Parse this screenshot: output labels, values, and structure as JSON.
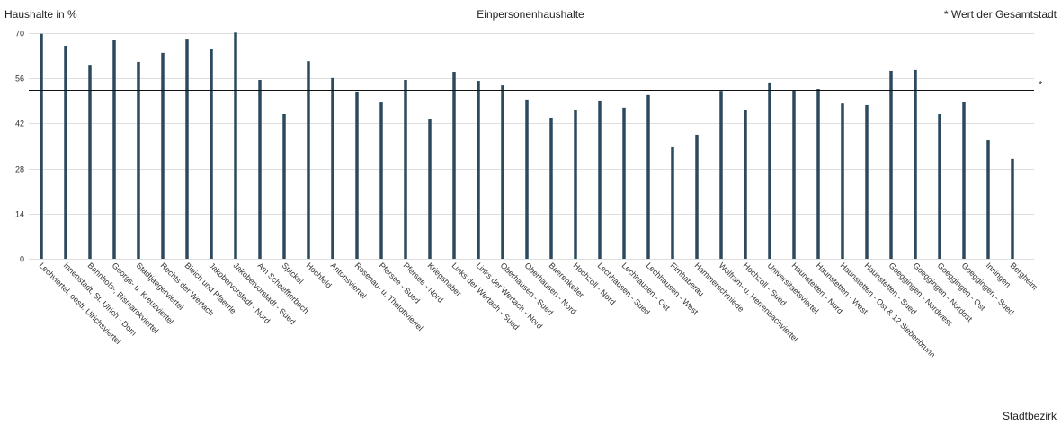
{
  "header": {
    "y_axis_title": "Haushalte in %",
    "title": "Einpersonenhaushalte",
    "legend_note": "* Wert der Gesamtstadt",
    "x_axis_title": "Stadtbezirk"
  },
  "colors": {
    "bar": "#2c4a5e",
    "grid": "#dedede",
    "reference": "#111111",
    "text": "#333333"
  },
  "chart_data": {
    "type": "bar",
    "title": "Einpersonenhaushalte",
    "xlabel": "Stadtbezirk",
    "ylabel": "Haushalte in %",
    "ylim": [
      0,
      70
    ],
    "yticks": [
      0,
      14,
      28,
      42,
      56,
      70
    ],
    "grid": true,
    "categories": [
      "Lechviertel, oestl. Ulrichsviertel",
      "Innenstadt, St. Ulrich - Dom",
      "Bahnhofs-, Bismarckviertel",
      "Georgs- u. Kreuzviertel",
      "Stadtjaegerviertel",
      "Rechts der Wertach",
      "Bleich und Pfaerrle",
      "Jakobervorstadt - Nord",
      "Jakobervorstadt - Sued",
      "Am Schaefflerbach",
      "Spickel",
      "Hochfeld",
      "Antonsviertel",
      "Rosenau- u. Thelottviertel",
      "Pfersee - Sued",
      "Pfersee - Nord",
      "Kriegshaber",
      "Links der Wertach - Sued",
      "Links der Wertach - Nord",
      "Oberhausen - Sued",
      "Oberhausen - Nord",
      "Baerenkeller",
      "Hochzoll - Nord",
      "Lechhausen - Sued",
      "Lechhausen - Ost",
      "Lechhausen - West",
      "Firnhaberau",
      "Hammerschmiede",
      "Wolfram- u. Herrenbachviertel",
      "Hochzoll - Sued",
      "Universitaetsviertel",
      "Haunstetten - Nord",
      "Haunstetten - West",
      "Haunstetten - Ost & 12 Siebenbrunn",
      "Haunstetten - Sued",
      "Goeggingen - Nordwest",
      "Goeggingen - Nordost",
      "Goeggingen - Ost",
      "Goeggingen - Sued",
      "Inningen",
      "Bergheim"
    ],
    "values": [
      69.8,
      66.1,
      60.2,
      67.8,
      61.1,
      63.9,
      68.3,
      65.0,
      70.2,
      55.5,
      44.9,
      61.3,
      56.1,
      51.9,
      48.5,
      55.5,
      43.5,
      58.0,
      55.2,
      53.8,
      49.4,
      43.8,
      46.3,
      49.1,
      46.9,
      50.8,
      34.6,
      38.5,
      52.1,
      46.3,
      54.7,
      52.4,
      52.7,
      48.2,
      47.7,
      58.3,
      58.6,
      44.9,
      48.8,
      36.8,
      31.0
    ],
    "reference_line": {
      "value": 52.4,
      "marker": "*"
    }
  }
}
